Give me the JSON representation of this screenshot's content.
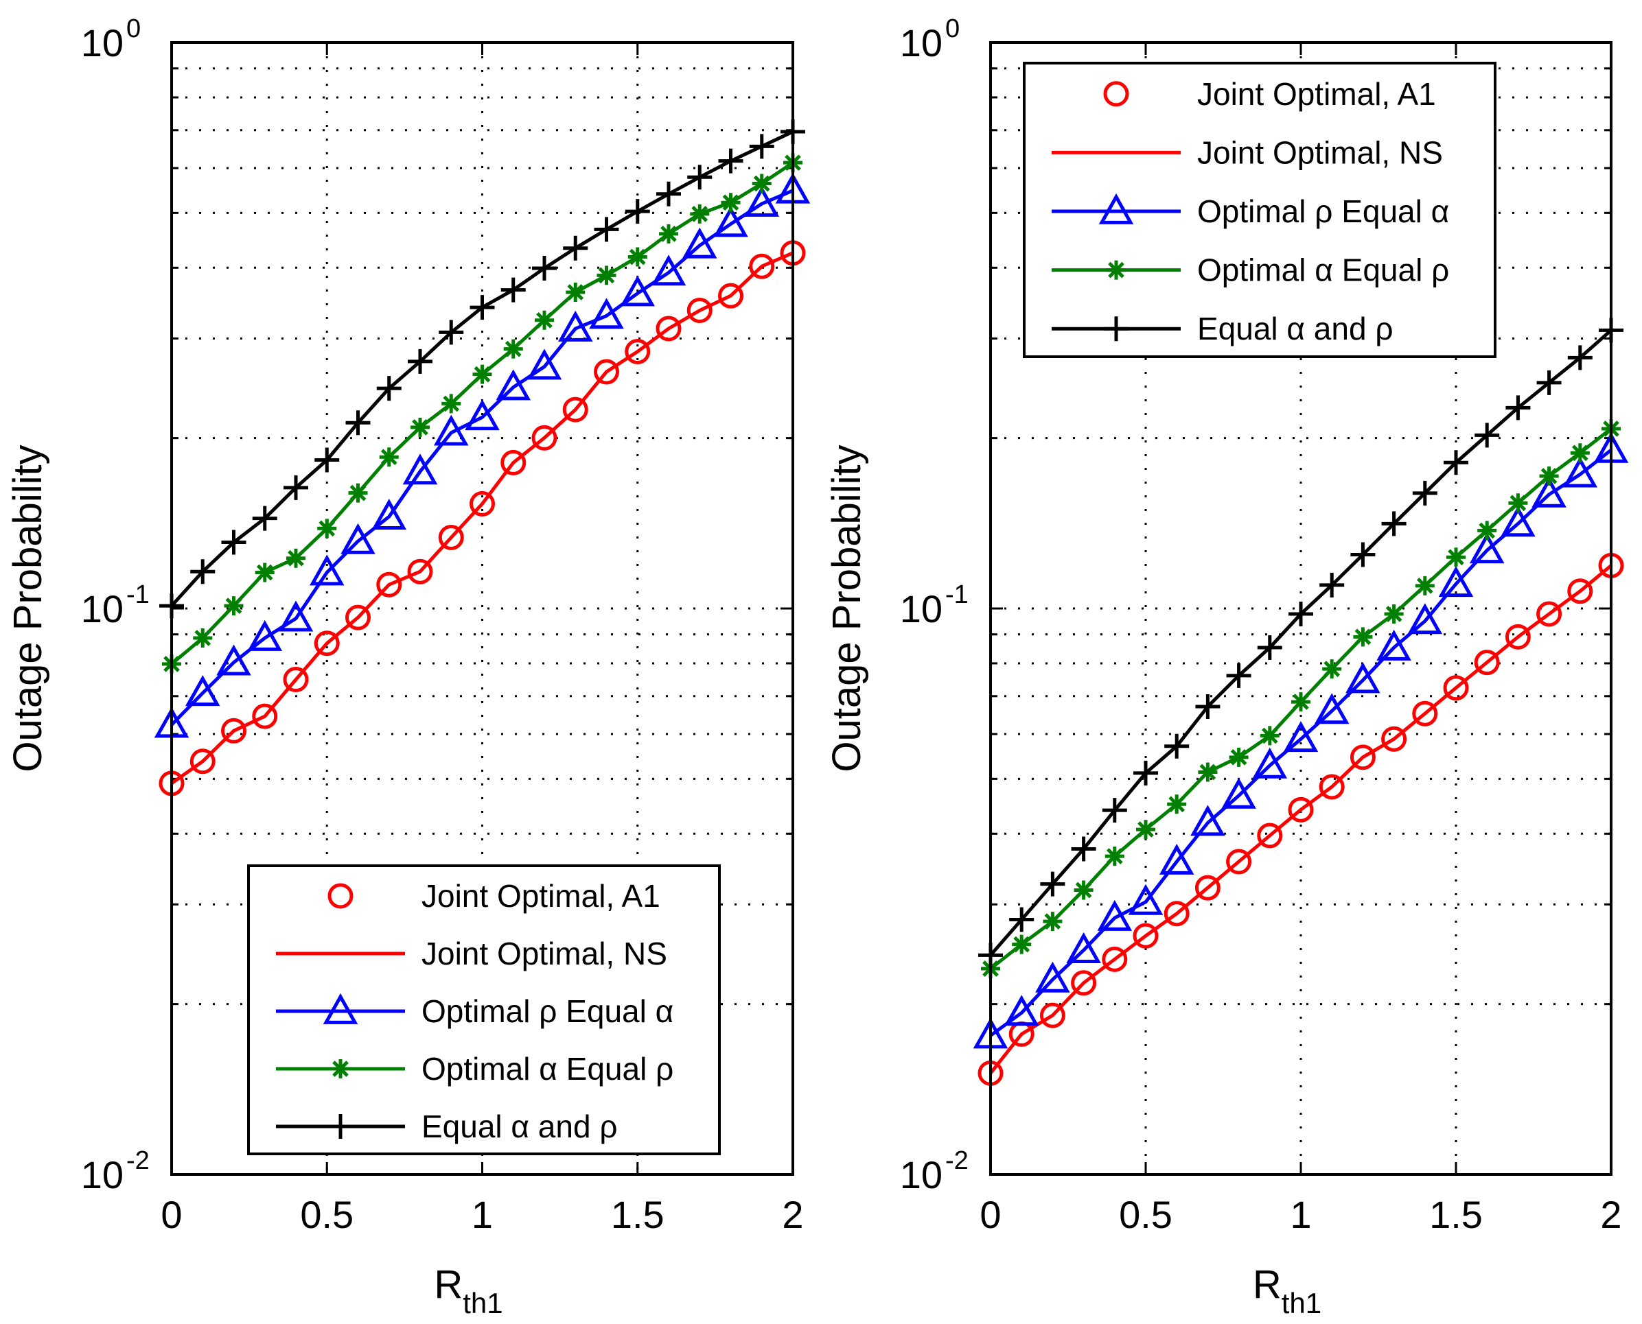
{
  "chart_data": [
    {
      "type": "line",
      "title": "",
      "xlabel": "R",
      "xlabel_sub": "th1",
      "ylabel": "Outage Probability",
      "xscale": "linear",
      "yscale": "log",
      "xlim": [
        0,
        2
      ],
      "ylim": [
        0.01,
        1
      ],
      "grid": true,
      "legend_position": "bottom-right",
      "x_ticks": [
        "0",
        "0.5",
        "1",
        "1.5",
        "2"
      ],
      "y_ticks": [
        {
          "base": "10",
          "exp": "0"
        },
        {
          "base": "10",
          "exp": "-1"
        },
        {
          "base": "10",
          "exp": "-2"
        }
      ],
      "x": [
        0,
        0.1,
        0.2,
        0.3,
        0.4,
        0.5,
        0.6,
        0.7,
        0.8,
        0.9,
        1.0,
        1.1,
        1.2,
        1.3,
        1.4,
        1.5,
        1.6,
        1.7,
        1.8,
        1.9,
        2.0
      ],
      "series": [
        {
          "name": "Joint Optimal, A1",
          "color": "#ff0000",
          "marker": "circle",
          "line": false,
          "values": [
            0.0491,
            0.0537,
            0.0608,
            0.0645,
            0.0749,
            0.0868,
            0.0964,
            0.1102,
            0.1162,
            0.1335,
            0.1531,
            0.181,
            0.2002,
            0.2246,
            0.2619,
            0.2844,
            0.3123,
            0.3363,
            0.3569,
            0.4023,
            0.4248
          ]
        },
        {
          "name": "Joint Optimal, NS",
          "color": "#ff0000",
          "marker": "none",
          "line": true,
          "values": [
            0.0491,
            0.0537,
            0.0608,
            0.0645,
            0.0749,
            0.0868,
            0.0964,
            0.1102,
            0.1162,
            0.1335,
            0.1531,
            0.181,
            0.2002,
            0.2246,
            0.2619,
            0.2844,
            0.3123,
            0.3363,
            0.3569,
            0.4023,
            0.4248
          ]
        },
        {
          "name": "Optimal ρ Equal α",
          "color": "#0000ff",
          "marker": "triangle",
          "line": true,
          "values": [
            0.0623,
            0.0709,
            0.0803,
            0.0887,
            0.096,
            0.1158,
            0.1315,
            0.1453,
            0.1746,
            0.2045,
            0.2177,
            0.246,
            0.2675,
            0.3123,
            0.3289,
            0.3605,
            0.3922,
            0.438,
            0.478,
            0.519,
            0.5476
          ]
        },
        {
          "name": "Optimal α Equal ρ",
          "color": "#008000",
          "marker": "star",
          "line": true,
          "values": [
            0.0798,
            0.0887,
            0.1011,
            0.1158,
            0.1227,
            0.1385,
            0.16,
            0.1852,
            0.209,
            0.2301,
            0.2593,
            0.2875,
            0.3231,
            0.3621,
            0.3878,
            0.418,
            0.4592,
            0.4979,
            0.5216,
            0.5635,
            0.6133
          ]
        },
        {
          "name": "Equal α and ρ",
          "color": "#000000",
          "marker": "plus",
          "line": true,
          "values": [
            0.1011,
            0.1162,
            0.1309,
            0.1443,
            0.1635,
            0.183,
            0.2129,
            0.2449,
            0.2732,
            0.3076,
            0.3404,
            0.3655,
            0.3992,
            0.4332,
            0.4676,
            0.5032,
            0.54,
            0.5782,
            0.6176,
            0.6555,
            0.6958
          ]
        }
      ]
    },
    {
      "type": "line",
      "title": "",
      "xlabel": "R",
      "xlabel_sub": "th1",
      "ylabel": "Outage Probability",
      "xscale": "linear",
      "yscale": "log",
      "xlim": [
        0,
        2
      ],
      "ylim": [
        0.01,
        1
      ],
      "grid": true,
      "legend_position": "top-left",
      "x_ticks": [
        "0",
        "0.5",
        "1",
        "1.5",
        "2"
      ],
      "y_ticks": [
        {
          "base": "10",
          "exp": "0"
        },
        {
          "base": "10",
          "exp": "-1"
        },
        {
          "base": "10",
          "exp": "-2"
        }
      ],
      "x": [
        0,
        0.1,
        0.2,
        0.3,
        0.4,
        0.5,
        0.6,
        0.7,
        0.8,
        0.9,
        1.0,
        1.1,
        1.2,
        1.3,
        1.4,
        1.5,
        1.6,
        1.7,
        1.8,
        1.9,
        2.0
      ],
      "series": [
        {
          "name": "Joint Optimal, A1",
          "color": "#ff0000",
          "marker": "circle",
          "line": false,
          "values": [
            0.0151,
            0.0177,
            0.0191,
            0.0218,
            0.024,
            0.0264,
            0.0289,
            0.0321,
            0.0357,
            0.0397,
            0.0441,
            0.0484,
            0.0546,
            0.0588,
            0.0652,
            0.0724,
            0.0803,
            0.0891,
            0.0978,
            0.1073,
            0.1191
          ]
        },
        {
          "name": "Joint Optimal, NS",
          "color": "#ff0000",
          "marker": "none",
          "line": true,
          "values": [
            0.0151,
            0.0177,
            0.0191,
            0.0218,
            0.024,
            0.0264,
            0.0289,
            0.0321,
            0.0357,
            0.0397,
            0.0441,
            0.0484,
            0.0546,
            0.0588,
            0.0652,
            0.0724,
            0.0803,
            0.0891,
            0.0978,
            0.1073,
            0.1191
          ]
        },
        {
          "name": "Optimal ρ Equal α",
          "color": "#0000ff",
          "marker": "triangle",
          "line": true,
          "values": [
            0.0176,
            0.0193,
            0.0221,
            0.0249,
            0.0284,
            0.0303,
            0.0357,
            0.0418,
            0.0467,
            0.0528,
            0.0588,
            0.0659,
            0.0747,
            0.0853,
            0.095,
            0.1105,
            0.1267,
            0.1412,
            0.159,
            0.1725,
            0.1906
          ]
        },
        {
          "name": "Optimal α Equal ρ",
          "color": "#008000",
          "marker": "star",
          "line": true,
          "values": [
            0.0231,
            0.0255,
            0.028,
            0.0318,
            0.0365,
            0.0407,
            0.0451,
            0.0514,
            0.0546,
            0.0596,
            0.0684,
            0.0782,
            0.0891,
            0.0978,
            0.1097,
            0.1232,
            0.1373,
            0.1536,
            0.1714,
            0.1883,
            0.2078
          ]
        },
        {
          "name": "Equal α and ρ",
          "color": "#000000",
          "marker": "plus",
          "line": true,
          "values": [
            0.0244,
            0.0282,
            0.0326,
            0.0376,
            0.044,
            0.0512,
            0.0571,
            0.0671,
            0.0761,
            0.0853,
            0.0978,
            0.11,
            0.1245,
            0.1412,
            0.1599,
            0.1811,
            0.2024,
            0.2263,
            0.2506,
            0.2774,
            0.3102
          ]
        }
      ]
    }
  ]
}
